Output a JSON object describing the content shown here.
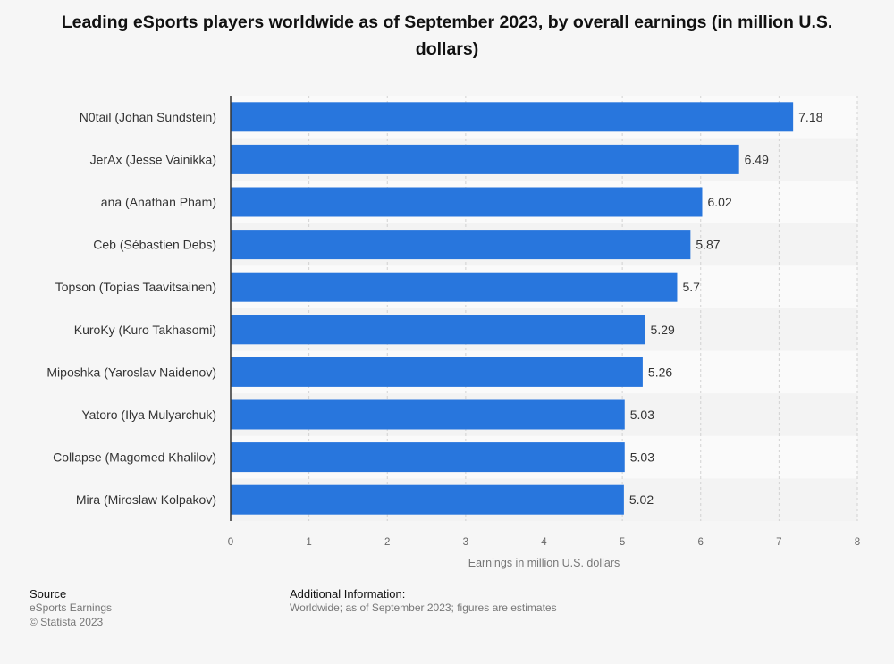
{
  "chart_data": {
    "type": "bar",
    "orientation": "horizontal",
    "title": "Leading eSports players worldwide as of September 2023, by overall earnings (in million U.S. dollars)",
    "xlabel": "Earnings in million U.S. dollars",
    "ylabel": "",
    "categories": [
      "N0tail (Johan Sundstein)",
      "JerAx (Jesse Vainikka)",
      "ana (Anathan Pham)",
      "Ceb (Sébastien Debs)",
      "Topson (Topias Taavitsainen)",
      "KuroKy (Kuro Takhasomi)",
      "Miposhka (Yaroslav Naidenov)",
      "Yatoro (Ilya Mulyarchuk)",
      "Collapse (Magomed Khalilov)",
      "Mira (Miroslaw Kolpakov)"
    ],
    "values": [
      7.18,
      6.49,
      6.02,
      5.87,
      5.7,
      5.29,
      5.26,
      5.03,
      5.03,
      5.02
    ],
    "xlim": [
      0,
      8
    ],
    "xticks": [
      0,
      1,
      2,
      3,
      4,
      5,
      6,
      7,
      8
    ],
    "grid": true,
    "bar_color": "#2876dd"
  },
  "footer": {
    "source_label": "Source",
    "source_lines": [
      "eSports Earnings",
      "© Statista 2023"
    ],
    "info_label": "Additional Information:",
    "info_text": "Worldwide; as of September 2023; figures are estimates"
  }
}
